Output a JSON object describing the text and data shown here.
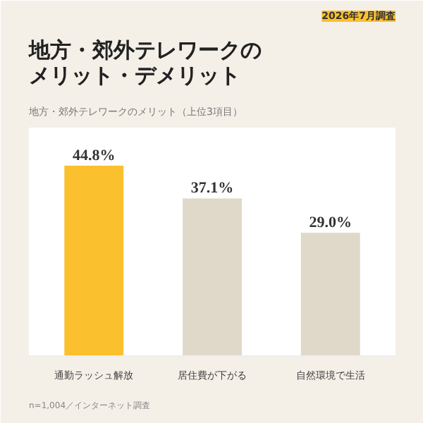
{
  "chart_data": {
    "type": "bar",
    "title": "地方・郊外テレワークのメリット・デメリット",
    "subtitle": "地方・郊外テレワークのメリット（上位3項目）",
    "annotations": [
      "2026年7月調査",
      "n=1,004／インターネット調査"
    ],
    "categories": [
      "通勤ラッシュ解放",
      "居住費が下がる",
      "自然環境で生活"
    ],
    "values": [
      44.8,
      37.1,
      29.0
    ],
    "colors": [
      "#fbc02d",
      "#e0d9c9",
      "#e0d9c9"
    ],
    "value_labels": [
      "44.8%",
      "37.1%",
      "29.0%"
    ],
    "tick_labels": "x",
    "grid": false
  }
}
